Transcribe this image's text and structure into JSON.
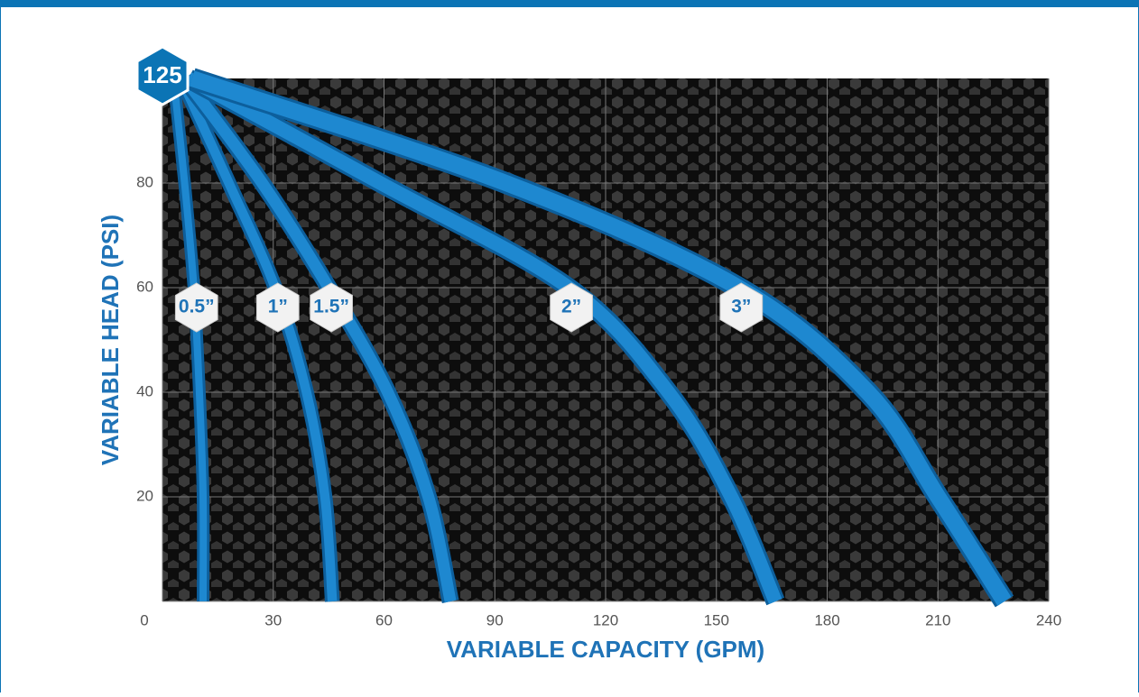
{
  "chart_data": {
    "type": "line",
    "xlabel": "VARIABLE CAPACITY (GPM)",
    "ylabel": "VARIABLE HEAD (PSI)",
    "annotation": "125",
    "xlim": [
      0,
      240
    ],
    "ylim": [
      0,
      100
    ],
    "xticks": [
      0,
      30,
      60,
      90,
      120,
      150,
      180,
      210,
      240
    ],
    "yticks": [
      20,
      40,
      60,
      80
    ],
    "grid": true,
    "series": [
      {
        "name": "0.5”",
        "color": "#1e88d0",
        "x": [
          3,
          6,
          8.5,
          10,
          11,
          11
        ],
        "values": [
          100,
          80,
          60,
          40,
          20,
          0
        ]
      },
      {
        "name": "1”",
        "color": "#1e88d0",
        "x": [
          5,
          18,
          30.5,
          39,
          44,
          46
        ],
        "values": [
          100,
          80,
          60,
          40,
          20,
          0
        ]
      },
      {
        "name": "1.5”",
        "color": "#1e88d0",
        "x": [
          6,
          27,
          45,
          61,
          72,
          78
        ],
        "values": [
          100,
          80,
          60,
          40,
          20,
          0
        ]
      },
      {
        "name": "2”",
        "color": "#1e88d0",
        "x": [
          7,
          59,
          110,
          137,
          154,
          166
        ],
        "values": [
          100,
          80,
          60,
          40,
          20,
          0
        ]
      },
      {
        "name": "3”",
        "color": "#1e88d0",
        "x": [
          8,
          93,
          156,
          191,
          210,
          228
        ],
        "values": [
          100,
          80,
          60,
          40,
          20,
          0
        ]
      }
    ]
  }
}
